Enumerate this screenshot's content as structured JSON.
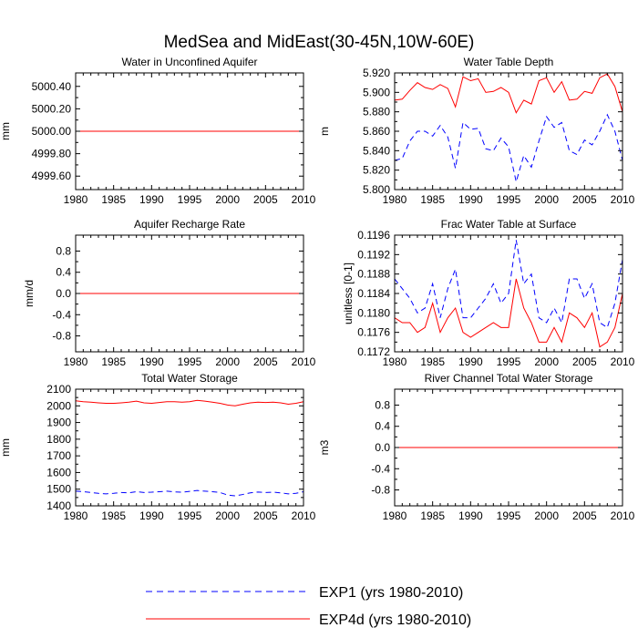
{
  "title": "MedSea and MidEast(30-45N,10W-60E)",
  "colors": {
    "exp1": "#0000ff",
    "exp4d": "#ff0000",
    "axis": "#000000"
  },
  "legend": [
    {
      "label": "EXP1 (yrs 1980-2010)",
      "series": "exp1",
      "style": "dashed"
    },
    {
      "label": "EXP4d (yrs 1980-2010)",
      "series": "exp4d",
      "style": "solid"
    }
  ],
  "chart_data": [
    {
      "type": "line",
      "title": "Water in Unconfined Aquifer",
      "ylabel": "mm",
      "xlabel": "",
      "xlim": [
        1980,
        2010
      ],
      "xticks": [
        1980,
        1985,
        1990,
        1995,
        2000,
        2005,
        2010
      ],
      "ylim": [
        4999.48,
        5000.52
      ],
      "yticks": [
        4999.6,
        4999.8,
        5000.0,
        5000.2,
        5000.4
      ],
      "ytick_labels": [
        "4999.60",
        "4999.80",
        "5000.00",
        "5000.20",
        "5000.40"
      ],
      "series": [
        {
          "name": "EXP1",
          "key": "exp1",
          "x": [
            1980,
            2010
          ],
          "values": [
            5000.0,
            5000.0
          ]
        },
        {
          "name": "EXP4d",
          "key": "exp4d",
          "x": [
            1980,
            2010
          ],
          "values": [
            5000.0,
            5000.0
          ]
        }
      ]
    },
    {
      "type": "line",
      "title": "Water Table Depth",
      "ylabel": "m",
      "xlabel": "",
      "xlim": [
        1980,
        2010
      ],
      "xticks": [
        1980,
        1985,
        1990,
        1995,
        2000,
        2005,
        2010
      ],
      "ylim": [
        5.8,
        5.92
      ],
      "yticks": [
        5.8,
        5.82,
        5.84,
        5.86,
        5.88,
        5.9,
        5.92
      ],
      "ytick_labels": [
        "5.800",
        "5.820",
        "5.840",
        "5.860",
        "5.880",
        "5.900",
        "5.920"
      ],
      "series": [
        {
          "name": "EXP1",
          "key": "exp1",
          "x": [
            1980,
            1981,
            1982,
            1983,
            1984,
            1985,
            1986,
            1987,
            1988,
            1989,
            1990,
            1991,
            1992,
            1993,
            1994,
            1995,
            1996,
            1997,
            1998,
            1999,
            2000,
            2001,
            2002,
            2003,
            2004,
            2005,
            2006,
            2007,
            2008,
            2009,
            2010
          ],
          "values": [
            5.83,
            5.832,
            5.85,
            5.86,
            5.86,
            5.855,
            5.866,
            5.854,
            5.822,
            5.869,
            5.862,
            5.863,
            5.842,
            5.84,
            5.853,
            5.844,
            5.808,
            5.835,
            5.823,
            5.85,
            5.875,
            5.864,
            5.869,
            5.84,
            5.836,
            5.851,
            5.846,
            5.86,
            5.877,
            5.86,
            5.83
          ]
        },
        {
          "name": "EXP4d",
          "key": "exp4d",
          "x": [
            1980,
            1981,
            1982,
            1983,
            1984,
            1985,
            1986,
            1987,
            1988,
            1989,
            1990,
            1991,
            1992,
            1993,
            1994,
            1995,
            1996,
            1997,
            1998,
            1999,
            2000,
            2001,
            2002,
            2003,
            2004,
            2005,
            2006,
            2007,
            2008,
            2009,
            2010
          ],
          "values": [
            5.892,
            5.893,
            5.902,
            5.91,
            5.905,
            5.903,
            5.908,
            5.904,
            5.885,
            5.916,
            5.912,
            5.914,
            5.9,
            5.901,
            5.905,
            5.9,
            5.879,
            5.892,
            5.888,
            5.912,
            5.915,
            5.9,
            5.911,
            5.892,
            5.893,
            5.901,
            5.899,
            5.915,
            5.919,
            5.906,
            5.88
          ]
        }
      ]
    },
    {
      "type": "line",
      "title": "Aquifer Recharge Rate",
      "ylabel": "mm/d",
      "xlabel": "",
      "xlim": [
        1980,
        2010
      ],
      "xticks": [
        1980,
        1985,
        1990,
        1995,
        2000,
        2005,
        2010
      ],
      "ylim": [
        -1.1,
        1.1
      ],
      "yticks": [
        -0.8,
        -0.4,
        0.0,
        0.4,
        0.8
      ],
      "ytick_labels": [
        "-0.8",
        "-0.4",
        "0.0",
        "0.4",
        "0.8"
      ],
      "series": [
        {
          "name": "EXP1",
          "key": "exp1",
          "x": [
            1980,
            2010
          ],
          "values": [
            0.0,
            0.0
          ]
        },
        {
          "name": "EXP4d",
          "key": "exp4d",
          "x": [
            1980,
            2010
          ],
          "values": [
            0.0,
            0.0
          ]
        }
      ]
    },
    {
      "type": "line",
      "title": "Frac Water Table at Surface",
      "ylabel": "unitless [0-1]",
      "xlabel": "",
      "xlim": [
        1980,
        2010
      ],
      "xticks": [
        1980,
        1985,
        1990,
        1995,
        2000,
        2005,
        2010
      ],
      "ylim": [
        0.1172,
        0.1196
      ],
      "yticks": [
        0.1172,
        0.1176,
        0.118,
        0.1184,
        0.1188,
        0.1192,
        0.1196
      ],
      "ytick_labels": [
        "0.1172",
        "0.1176",
        "0.1180",
        "0.1184",
        "0.1188",
        "0.1192",
        "0.1196"
      ],
      "series": [
        {
          "name": "EXP1",
          "key": "exp1",
          "x": [
            1980,
            1981,
            1982,
            1983,
            1984,
            1985,
            1986,
            1987,
            1988,
            1989,
            1990,
            1991,
            1992,
            1993,
            1994,
            1995,
            1996,
            1997,
            1998,
            1999,
            2000,
            2001,
            2002,
            2003,
            2004,
            2005,
            2006,
            2007,
            2008,
            2009,
            2010
          ],
          "values": [
            0.1187,
            0.1185,
            0.1183,
            0.118,
            0.1181,
            0.1186,
            0.1179,
            0.1185,
            0.1189,
            0.1179,
            0.1179,
            0.1181,
            0.1183,
            0.1186,
            0.1182,
            0.1184,
            0.1195,
            0.1186,
            0.1188,
            0.1179,
            0.1178,
            0.1181,
            0.1178,
            0.1187,
            0.1187,
            0.1183,
            0.1186,
            0.1178,
            0.1177,
            0.1182,
            0.1191
          ]
        },
        {
          "name": "EXP4d",
          "key": "exp4d",
          "x": [
            1980,
            1981,
            1982,
            1983,
            1984,
            1985,
            1986,
            1987,
            1988,
            1989,
            1990,
            1991,
            1992,
            1993,
            1994,
            1995,
            1996,
            1997,
            1998,
            1999,
            2000,
            2001,
            2002,
            2003,
            2004,
            2005,
            2006,
            2007,
            2008,
            2009,
            2010
          ],
          "values": [
            0.1179,
            0.1178,
            0.1178,
            0.1176,
            0.1177,
            0.1182,
            0.1176,
            0.1179,
            0.1181,
            0.1176,
            0.1175,
            0.1176,
            0.1177,
            0.1178,
            0.1177,
            0.1177,
            0.1187,
            0.1181,
            0.1178,
            0.1174,
            0.1174,
            0.1177,
            0.1174,
            0.118,
            0.1179,
            0.1177,
            0.118,
            0.1173,
            0.1174,
            0.1177,
            0.1184
          ]
        }
      ]
    },
    {
      "type": "line",
      "title": "Total Water Storage",
      "ylabel": "mm",
      "xlabel": "",
      "xlim": [
        1980,
        2010
      ],
      "xticks": [
        1980,
        1985,
        1990,
        1995,
        2000,
        2005,
        2010
      ],
      "ylim": [
        1400,
        2100
      ],
      "yticks": [
        1400,
        1500,
        1600,
        1700,
        1800,
        1900,
        2000,
        2100
      ],
      "ytick_labels": [
        "1400",
        "1500",
        "1600",
        "1700",
        "1800",
        "1900",
        "2000",
        "2100"
      ],
      "series": [
        {
          "name": "EXP1",
          "key": "exp1",
          "x": [
            1980,
            1981,
            1982,
            1983,
            1984,
            1985,
            1986,
            1987,
            1988,
            1989,
            1990,
            1991,
            1992,
            1993,
            1994,
            1995,
            1996,
            1997,
            1998,
            1999,
            2000,
            2001,
            2002,
            2003,
            2004,
            2005,
            2006,
            2007,
            2008,
            2009,
            2010
          ],
          "values": [
            1488,
            1485,
            1480,
            1475,
            1472,
            1475,
            1480,
            1478,
            1485,
            1480,
            1482,
            1485,
            1488,
            1484,
            1482,
            1487,
            1492,
            1488,
            1485,
            1480,
            1465,
            1460,
            1468,
            1478,
            1483,
            1480,
            1482,
            1478,
            1472,
            1475,
            1485
          ]
        },
        {
          "name": "EXP4d",
          "key": "exp4d",
          "x": [
            1980,
            1981,
            1982,
            1983,
            1984,
            1985,
            1986,
            1987,
            1988,
            1989,
            1990,
            1991,
            1992,
            1993,
            1994,
            1995,
            1996,
            1997,
            1998,
            1999,
            2000,
            2001,
            2002,
            2003,
            2004,
            2005,
            2006,
            2007,
            2008,
            2009,
            2010
          ],
          "values": [
            2030,
            2025,
            2022,
            2018,
            2015,
            2015,
            2018,
            2022,
            2028,
            2018,
            2015,
            2020,
            2025,
            2025,
            2022,
            2025,
            2033,
            2028,
            2022,
            2015,
            2005,
            2000,
            2010,
            2018,
            2022,
            2020,
            2022,
            2018,
            2010,
            2015,
            2025
          ]
        }
      ]
    },
    {
      "type": "line",
      "title": "River Channel Total Water Storage",
      "ylabel": "m3",
      "xlabel": "",
      "xlim": [
        1980,
        2010
      ],
      "xticks": [
        1980,
        1985,
        1990,
        1995,
        2000,
        2005,
        2010
      ],
      "ylim": [
        -1.1,
        1.1
      ],
      "yticks": [
        -0.8,
        -0.4,
        0.0,
        0.4,
        0.8
      ],
      "ytick_labels": [
        "-0.8",
        "-0.4",
        "0.0",
        "0.4",
        "0.8"
      ],
      "series": [
        {
          "name": "EXP1",
          "key": "exp1",
          "x": [
            1980,
            2010
          ],
          "values": [
            0.0,
            0.0
          ]
        },
        {
          "name": "EXP4d",
          "key": "exp4d",
          "x": [
            1980,
            2010
          ],
          "values": [
            0.0,
            0.0
          ]
        }
      ]
    }
  ]
}
